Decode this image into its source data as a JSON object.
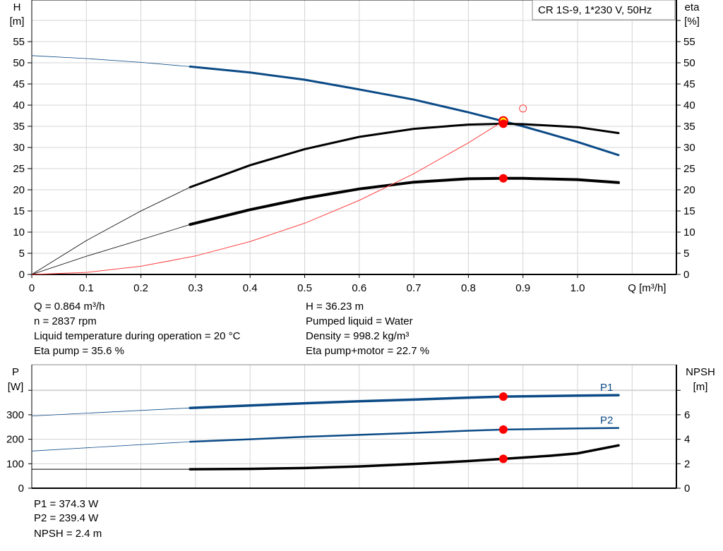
{
  "chart_data": [
    {
      "type": "line",
      "title_box": "CR 1S-9, 1*230 V, 50Hz",
      "xlabel": "Q [m³/h]",
      "ylabel_left": [
        "H",
        "[m]"
      ],
      "ylabel_right": [
        "eta",
        "[%]"
      ],
      "xlim": [
        0,
        1.175
      ],
      "ylim": [
        0,
        65
      ],
      "x_ticks": [
        "0",
        "0.1",
        "0.2",
        "0.3",
        "0.4",
        "0.5",
        "0.6",
        "0.7",
        "0.8",
        "0.9",
        "1.0"
      ],
      "y_ticks": [
        "0",
        "5",
        "10",
        "15",
        "20",
        "25",
        "30",
        "35",
        "40",
        "45",
        "50",
        "55"
      ],
      "grid": true,
      "series": [
        {
          "id": "head",
          "color": "#0b4a86",
          "x": [
            0,
            0.1,
            0.2,
            0.29,
            0.4,
            0.5,
            0.6,
            0.7,
            0.8,
            0.864,
            0.9,
            1.0,
            1.075
          ],
          "y": [
            51.7,
            51.0,
            50.1,
            49.1,
            47.7,
            46.0,
            43.7,
            41.3,
            38.3,
            36.2,
            35.0,
            31.3,
            28.2
          ]
        },
        {
          "id": "eta-pump",
          "color": "#000000",
          "x": [
            0,
            0.1,
            0.2,
            0.29,
            0.4,
            0.5,
            0.6,
            0.7,
            0.8,
            0.864,
            0.9,
            1.0,
            1.075
          ],
          "y": [
            0,
            8.0,
            15.0,
            20.6,
            25.8,
            29.6,
            32.5,
            34.4,
            35.4,
            35.6,
            35.5,
            34.8,
            33.4
          ]
        },
        {
          "id": "eta-total",
          "color": "#000000",
          "x": [
            0,
            0.1,
            0.2,
            0.29,
            0.4,
            0.5,
            0.6,
            0.7,
            0.8,
            0.864,
            0.9,
            1.0,
            1.075
          ],
          "y": [
            0,
            4.3,
            8.2,
            11.8,
            15.3,
            18.0,
            20.2,
            21.8,
            22.6,
            22.7,
            22.7,
            22.4,
            21.7
          ]
        },
        {
          "id": "system-curve",
          "color": "#ff4040",
          "x": [
            0,
            0.1,
            0.2,
            0.3,
            0.4,
            0.5,
            0.6,
            0.7,
            0.8,
            0.864
          ],
          "y": [
            0,
            0.49,
            1.94,
            4.37,
            7.77,
            12.1,
            17.5,
            23.8,
            31.1,
            36.23
          ]
        }
      ],
      "points": [
        {
          "id": "duty-point-head",
          "x": 0.864,
          "y": 36.23,
          "fill": "#ffe600"
        },
        {
          "id": "duty-point-eta-pump",
          "x": 0.864,
          "y": 35.6,
          "fill": "#ff0000"
        },
        {
          "id": "duty-point-eta-total",
          "x": 0.864,
          "y": 22.7,
          "fill": "#ff0000"
        },
        {
          "id": "requested-point",
          "x": 0.9,
          "y": 39.2,
          "fill": "none"
        }
      ]
    },
    {
      "type": "line",
      "ylabel_left": [
        "P",
        "[W]"
      ],
      "ylabel_right": [
        "NPSH",
        "[m]"
      ],
      "xlim": [
        0,
        1.175
      ],
      "ylim": [
        0,
        505
      ],
      "y_ticks": [
        "0",
        "100",
        "200",
        "300"
      ],
      "y_ticks_right": [
        "0",
        "2",
        "4",
        "6"
      ],
      "grid": true,
      "series": [
        {
          "id": "p1",
          "name": "P1",
          "color": "#0b4a86",
          "x": [
            0,
            0.29,
            0.4,
            0.5,
            0.6,
            0.7,
            0.8,
            0.864,
            1.0,
            1.075
          ],
          "y": [
            295,
            328,
            338,
            347,
            355,
            362,
            370,
            374.3,
            378,
            380
          ]
        },
        {
          "id": "p2",
          "name": "P2",
          "color": "#0b4a86",
          "x": [
            0,
            0.29,
            0.4,
            0.5,
            0.6,
            0.7,
            0.8,
            0.864,
            1.0,
            1.075
          ],
          "y": [
            152,
            190,
            200,
            210,
            218,
            226,
            235,
            239.4,
            244,
            246
          ]
        },
        {
          "id": "npsh",
          "color": "#000000",
          "unit": "m",
          "x": [
            0,
            0.29,
            0.4,
            0.5,
            0.6,
            0.7,
            0.8,
            0.864,
            0.95,
            1.0,
            1.075
          ],
          "y": [
            1.55,
            1.55,
            1.58,
            1.65,
            1.78,
            1.98,
            2.22,
            2.4,
            2.65,
            2.85,
            3.5
          ]
        }
      ],
      "points": [
        {
          "id": "duty-point-p1",
          "x": 0.864,
          "y": 374.3
        },
        {
          "id": "duty-point-p2",
          "x": 0.864,
          "y": 239.4
        },
        {
          "id": "duty-point-npsh",
          "x": 0.864,
          "y": 2.4
        }
      ]
    }
  ],
  "info": {
    "q": "Q = 0.864 m³/h",
    "n": "n = 2837 rpm",
    "temp": "Liquid temperature during operation = 20 °C",
    "eta_pump": "Eta pump = 35.6 %",
    "h": "H = 36.23 m",
    "liquid": "Pumped liquid = Water",
    "density": "Density = 998.2 kg/m³",
    "eta_total": "Eta pump+motor = 22.7 %",
    "p1": "P1 = 374.3 W",
    "p2": "P2 = 239.4 W",
    "npsh": "NPSH = 2.4 m"
  }
}
